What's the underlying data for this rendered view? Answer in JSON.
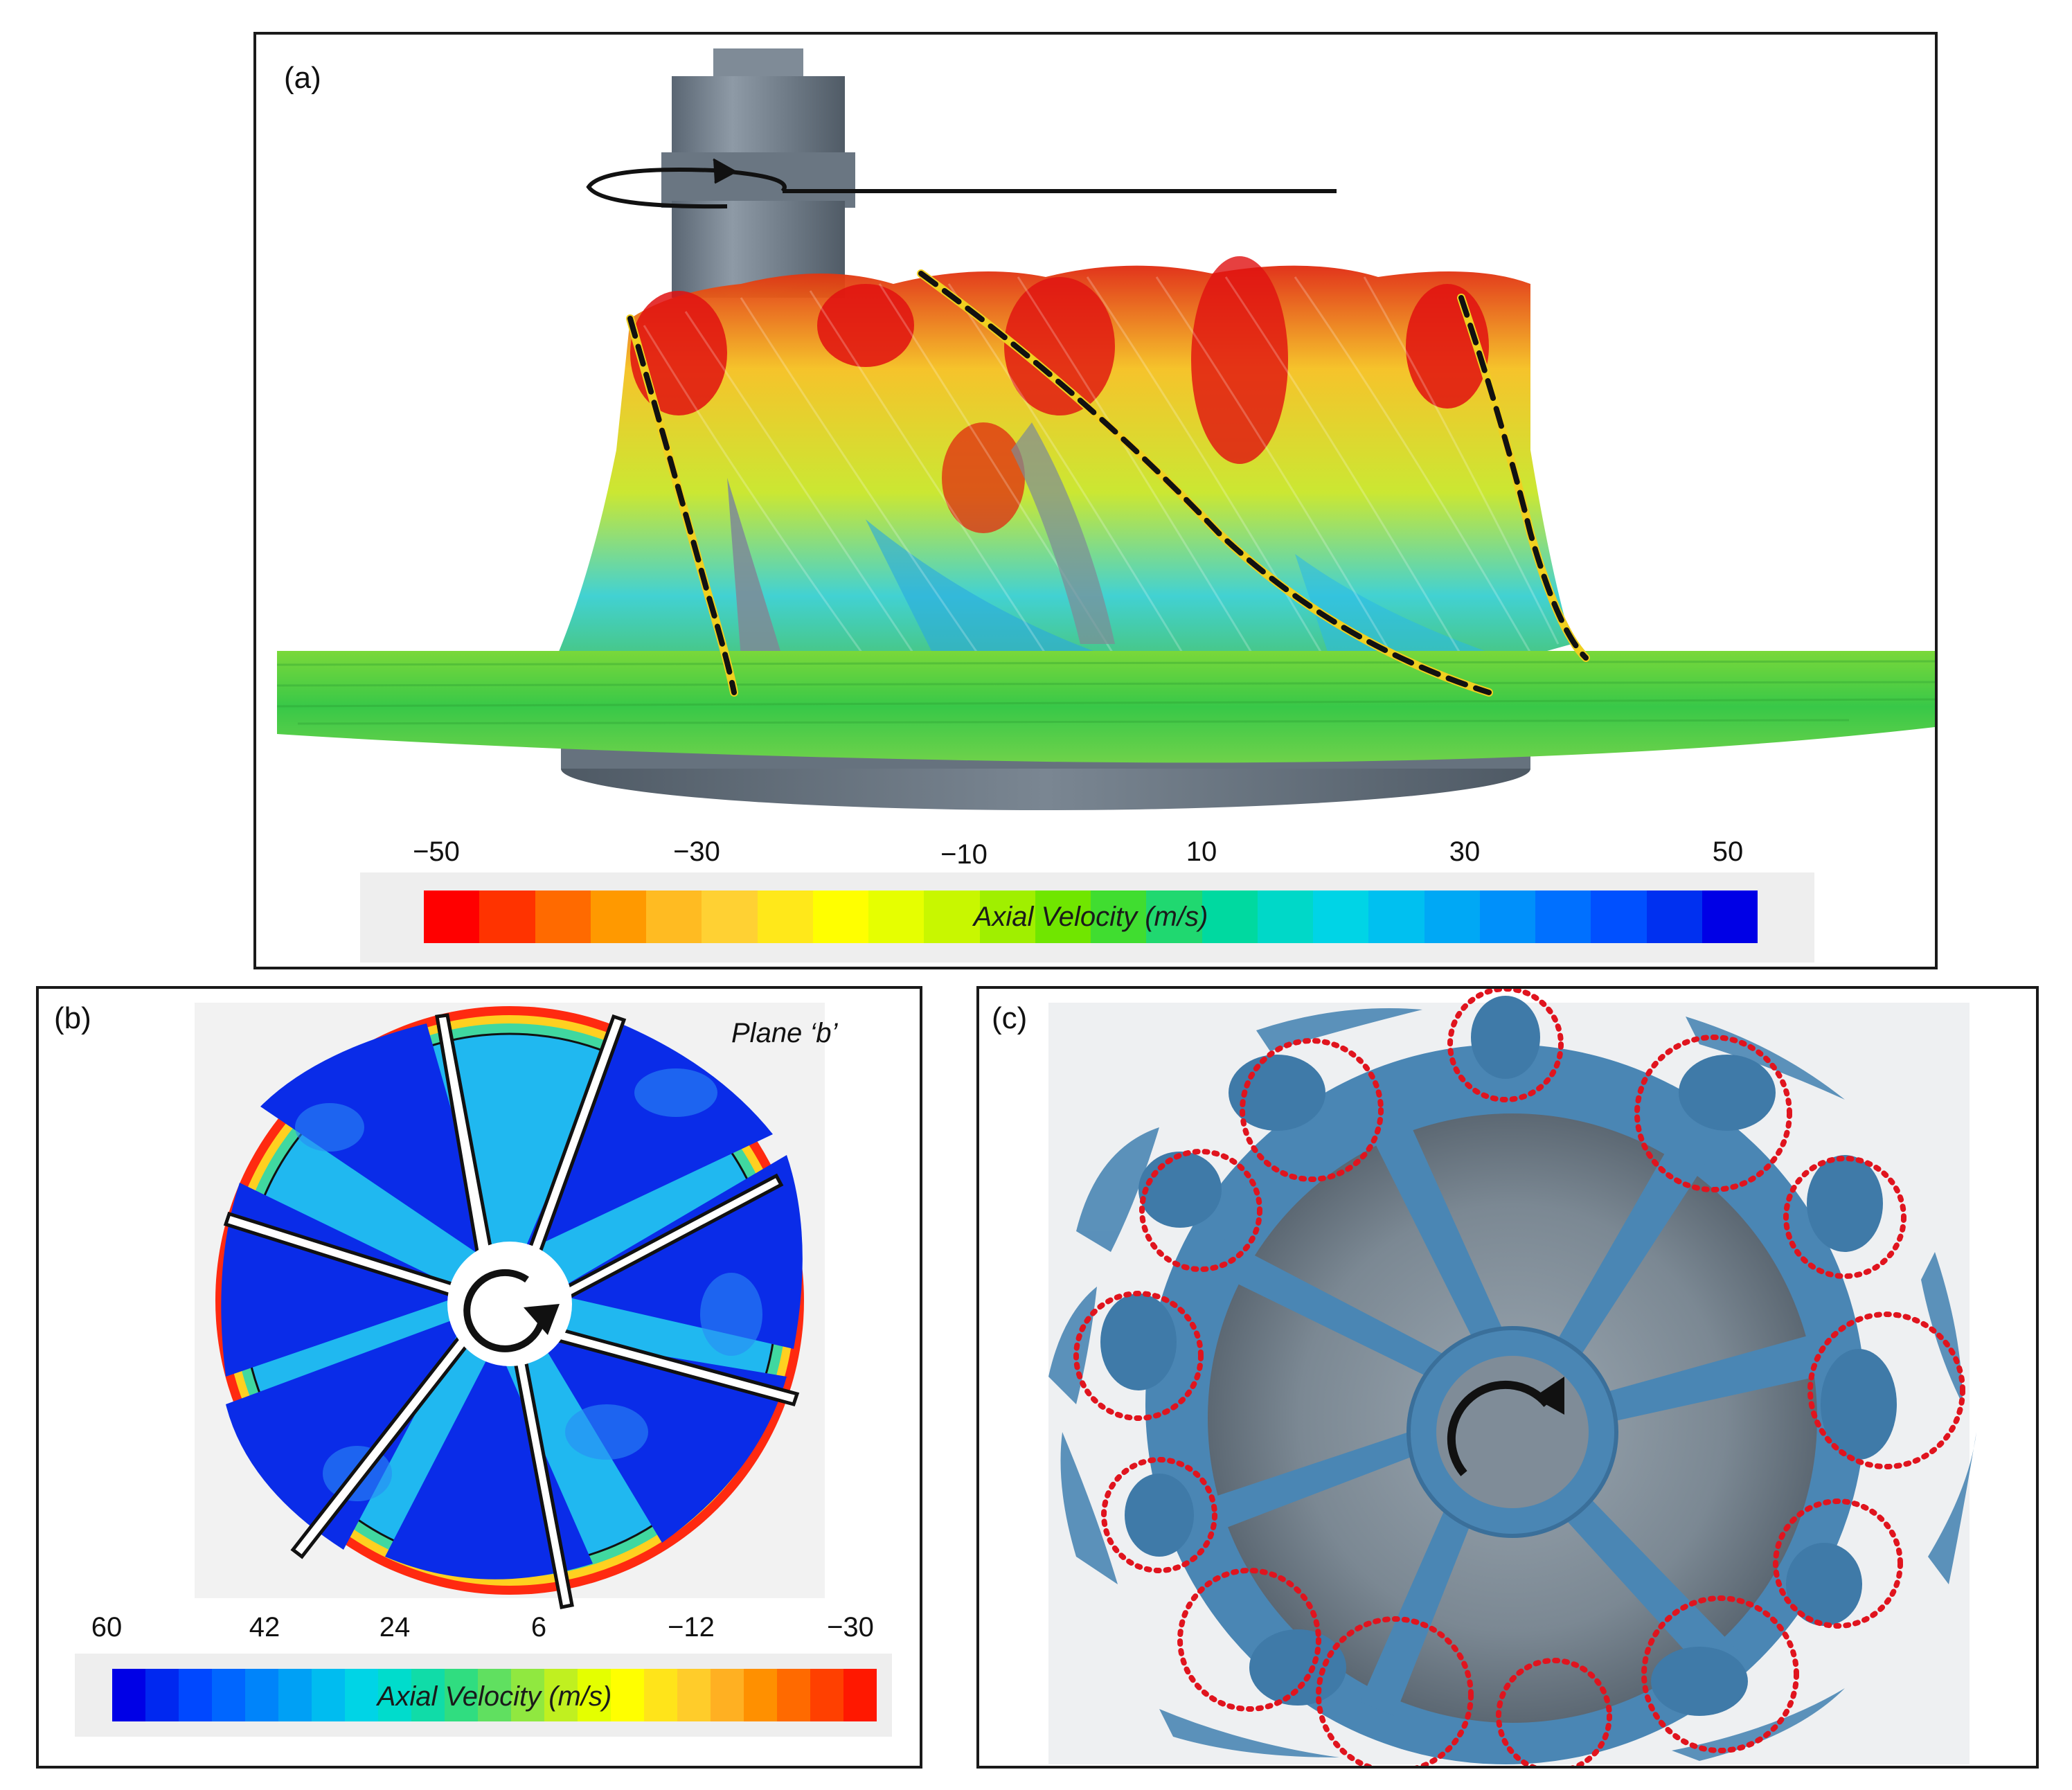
{
  "panels": {
    "a": {
      "label": "(a)"
    },
    "b": {
      "label": "(b)",
      "plane": "Plane ‘b’"
    },
    "c": {
      "label": "(c)"
    }
  },
  "colorbar_a": {
    "title": "Axial Velocity (m/s)",
    "ticks": [
      "−50",
      "−30",
      "−10",
      "10",
      "30",
      "50"
    ],
    "colors": [
      "#ff0000",
      "#ff3300",
      "#ff6a00",
      "#ff9900",
      "#ffbb22",
      "#ffd133",
      "#ffe81a",
      "#ffff00",
      "#e6ff00",
      "#c8f700",
      "#a0ef00",
      "#70e600",
      "#40dd30",
      "#20d870",
      "#00d9a0",
      "#00d8c8",
      "#00d4e6",
      "#00c0f0",
      "#00a8f5",
      "#0090fa",
      "#0070ff",
      "#0050ff",
      "#0030f0",
      "#0000e6"
    ]
  },
  "colorbar_b": {
    "title": "Axial Velocity (m/s)",
    "ticks": [
      "60",
      "42",
      "24",
      "6",
      "−12",
      "−30"
    ],
    "colors": [
      "#0000e6",
      "#0028f0",
      "#0048ff",
      "#0066ff",
      "#0084fa",
      "#00a0f5",
      "#00bcf0",
      "#00d4e6",
      "#00dccc",
      "#10dca8",
      "#30dd80",
      "#60e060",
      "#90e840",
      "#c0f020",
      "#e4ff00",
      "#ffff00",
      "#ffe41a",
      "#ffcc2a",
      "#ffb022",
      "#ff9000",
      "#ff6a00",
      "#ff4000",
      "#ff1800"
    ]
  },
  "colors": {
    "blade": "#111111",
    "dashed_overlay": "#f0d020",
    "isosurface": "#4a86b4",
    "hub_gray": "#6d7a86",
    "vortex_marker": "#e0141e"
  }
}
